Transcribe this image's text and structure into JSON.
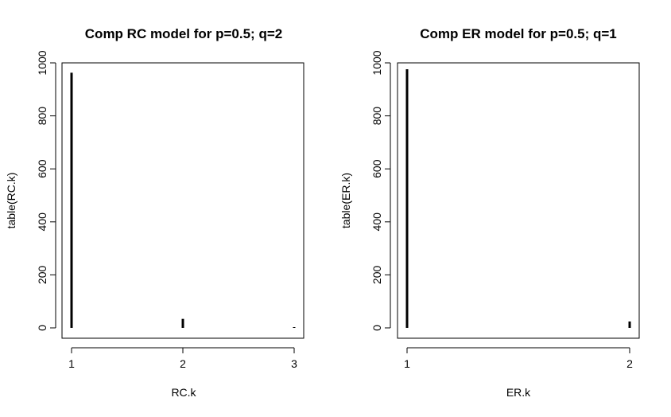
{
  "chart_data": [
    {
      "type": "bar",
      "title": "Comp RC model for p=0.5; q=2",
      "xlabel": "RC.k",
      "ylabel": "table(RC.k)",
      "categories": [
        "1",
        "2",
        "3"
      ],
      "values": [
        963,
        34,
        3
      ],
      "ylim": [
        0,
        1000
      ],
      "yticks": [
        "0",
        "200",
        "400",
        "600",
        "800",
        "1000"
      ],
      "xticks": [
        "1",
        "2",
        "3"
      ],
      "grid": false
    },
    {
      "type": "bar",
      "title": "Comp ER model for p=0.5; q=1",
      "xlabel": "ER.k",
      "ylabel": "table(ER.k)",
      "categories": [
        "1",
        "2"
      ],
      "values": [
        976,
        24
      ],
      "ylim": [
        0,
        1000
      ],
      "yticks": [
        "0",
        "200",
        "400",
        "600",
        "800",
        "1000"
      ],
      "xticks": [
        "1",
        "2"
      ],
      "grid": false
    }
  ]
}
